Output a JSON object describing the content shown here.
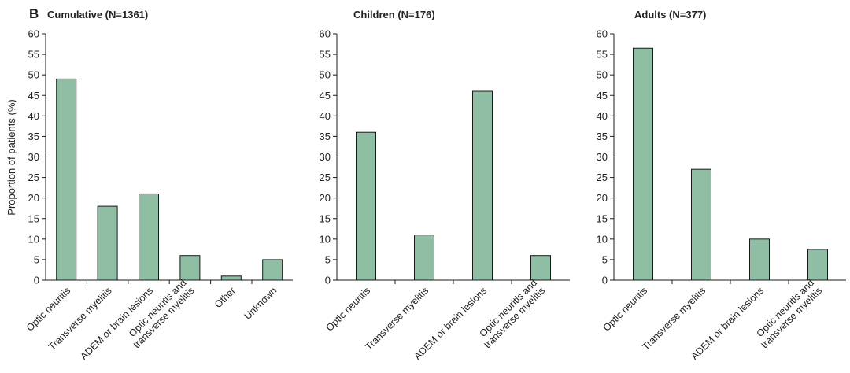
{
  "panel_label": "B",
  "ylabel": "Proportion of patients (%)",
  "bar_color": "#8fbea5",
  "chart_data": [
    {
      "type": "bar",
      "title": "Cumulative (N=1361)",
      "xlabel": "",
      "ylabel": "Proportion of patients (%)",
      "ylim": [
        0,
        60
      ],
      "yticks": [
        0,
        5,
        10,
        15,
        20,
        25,
        30,
        35,
        40,
        45,
        50,
        55,
        60
      ],
      "categories": [
        [
          "Optic neuritis"
        ],
        [
          "Transverse myelitis"
        ],
        [
          "ADEM or brain lesions"
        ],
        [
          "Optic neuritis and",
          "transverse myelitis"
        ],
        [
          "Other"
        ],
        [
          "Unknown"
        ]
      ],
      "values": [
        49,
        18,
        21,
        6,
        1,
        5
      ]
    },
    {
      "type": "bar",
      "title": "Children (N=176)",
      "xlabel": "",
      "ylabel": "",
      "ylim": [
        0,
        60
      ],
      "yticks": [
        0,
        5,
        10,
        15,
        20,
        25,
        30,
        35,
        40,
        45,
        50,
        55,
        60
      ],
      "categories": [
        [
          "Optic neuritis"
        ],
        [
          "Transverse myelitis"
        ],
        [
          "ADEM or brain lesions"
        ],
        [
          "Optic neuritis and",
          "transverse myelitis"
        ]
      ],
      "values": [
        36,
        11,
        46,
        6
      ]
    },
    {
      "type": "bar",
      "title": "Adults (N=377)",
      "xlabel": "",
      "ylabel": "",
      "ylim": [
        0,
        60
      ],
      "yticks": [
        0,
        5,
        10,
        15,
        20,
        25,
        30,
        35,
        40,
        45,
        50,
        55,
        60
      ],
      "categories": [
        [
          "Optic neuritis"
        ],
        [
          "Transverse myelitis"
        ],
        [
          "ADEM or brain lesions"
        ],
        [
          "Optic neuritis and",
          "transverse myelitis"
        ]
      ],
      "values": [
        56.5,
        27,
        10,
        7.5
      ]
    }
  ]
}
